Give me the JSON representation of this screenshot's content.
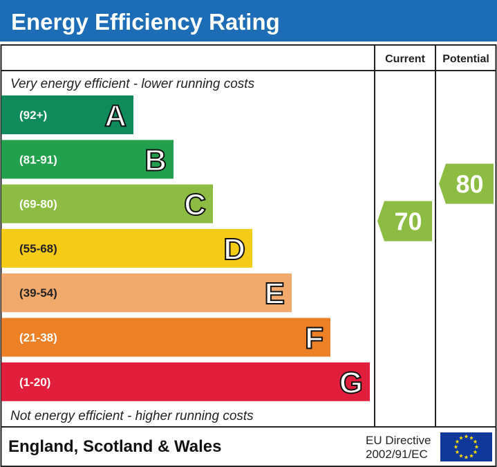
{
  "title": "Energy Efficiency Rating",
  "columns": {
    "current": "Current",
    "potential": "Potential"
  },
  "top_note": "Very energy efficient - lower running costs",
  "bottom_note": "Not energy efficient - higher running costs",
  "footer": {
    "region": "England, Scotland & Wales",
    "directive_line1": "EU Directive",
    "directive_line2": "2002/91/EC"
  },
  "colors": {
    "header": "#1c6db5",
    "eu_flag": "#10389a",
    "eu_star": "#ffdd00"
  },
  "chart_data": {
    "type": "bar",
    "categories": [
      "A",
      "B",
      "C",
      "D",
      "E",
      "F",
      "G"
    ],
    "bands": [
      {
        "letter": "A",
        "range": "(92+)",
        "color": "#0f8a5b"
      },
      {
        "letter": "B",
        "range": "(81-91)",
        "color": "#23a04e"
      },
      {
        "letter": "C",
        "range": "(69-80)",
        "color": "#8cbd42"
      },
      {
        "letter": "D",
        "range": "(55-68)",
        "color": "#f4cb17"
      },
      {
        "letter": "E",
        "range": "(39-54)",
        "color": "#f1aa6c"
      },
      {
        "letter": "F",
        "range": "(21-38)",
        "color": "#ec8027"
      },
      {
        "letter": "G",
        "range": "(1-20)",
        "color": "#e11f3d"
      }
    ],
    "current": {
      "value": 70,
      "band": "C",
      "color": "#8cbd42"
    },
    "potential": {
      "value": 80,
      "band": "C",
      "color": "#8cbd42"
    }
  }
}
